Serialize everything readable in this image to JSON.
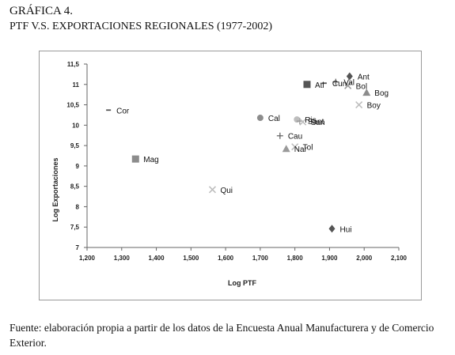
{
  "figure": {
    "number": "GRÁFICA 4.",
    "title": "PTF V.S. EXPORTACIONES REGIONALES (1977-2002)",
    "source": "Fuente: elaboración propia a partir de los datos de la Encuesta Anual Manufacturera y de Comercio Exterior."
  },
  "chart_data": {
    "type": "scatter",
    "xlabel": "Log PTF",
    "ylabel": "Log Exportaciones",
    "xlim": [
      1.2,
      2.1
    ],
    "ylim": [
      7,
      11.5
    ],
    "xticks": [
      1.2,
      1.3,
      1.4,
      1.5,
      1.6,
      1.7,
      1.8,
      1.9,
      2.0,
      2.1
    ],
    "xtick_labels": [
      "1,200",
      "1,300",
      "1,400",
      "1,500",
      "1,600",
      "1,700",
      "1,800",
      "1,900",
      "2,000",
      "2,100"
    ],
    "yticks": [
      7,
      7.5,
      8,
      8.5,
      9,
      9.5,
      10,
      10.5,
      11,
      11.5
    ],
    "ytick_labels": [
      "7",
      "7,5",
      "8",
      "8,5",
      "9",
      "9,5",
      "10",
      "10,5",
      "11",
      "11,5"
    ],
    "grid": false,
    "points": [
      {
        "label": "Cor",
        "x": 1.262,
        "y": 10.37,
        "marker": "dash",
        "color": "#555555"
      },
      {
        "label": "Mag",
        "x": 1.34,
        "y": 9.17,
        "marker": "square",
        "color": "#8c8c8c"
      },
      {
        "label": "Qui",
        "x": 1.562,
        "y": 8.42,
        "marker": "x",
        "color": "#bdbdbd"
      },
      {
        "label": "Cal",
        "x": 1.7,
        "y": 10.18,
        "marker": "circle",
        "color": "#8c8c8c"
      },
      {
        "label": "Cau",
        "x": 1.757,
        "y": 9.74,
        "marker": "plus",
        "color": "#666666"
      },
      {
        "label": "Nar",
        "x": 1.775,
        "y": 9.42,
        "marker": "triangle",
        "color": "#9a9a9a"
      },
      {
        "label": "Tol",
        "x": 1.8,
        "y": 9.47,
        "marker": "x",
        "color": "#bdbdbd"
      },
      {
        "label": "Ris",
        "x": 1.806,
        "y": 10.14,
        "marker": "circle",
        "color": "#bdbdbd"
      },
      {
        "label": "Sant",
        "x": 1.814,
        "y": 10.1,
        "marker": "plus",
        "color": "#9a9a9a"
      },
      {
        "label": "San",
        "x": 1.823,
        "y": 10.08,
        "marker": "x",
        "color": "#bdbdbd"
      },
      {
        "label": "Atl",
        "x": 1.835,
        "y": 11.0,
        "marker": "square",
        "color": "#555555"
      },
      {
        "label": "Cun",
        "x": 1.885,
        "y": 11.03,
        "marker": "dash",
        "color": "#555555"
      },
      {
        "label": "Val",
        "x": 1.918,
        "y": 11.06,
        "marker": "plus",
        "color": "#666666"
      },
      {
        "label": "Bol",
        "x": 1.953,
        "y": 10.97,
        "marker": "x",
        "color": "#999999"
      },
      {
        "label": "Ant",
        "x": 1.958,
        "y": 11.2,
        "marker": "diamond",
        "color": "#555555"
      },
      {
        "label": "Bog",
        "x": 2.007,
        "y": 10.8,
        "marker": "triangle",
        "color": "#8c8c8c"
      },
      {
        "label": "Boy",
        "x": 1.985,
        "y": 10.5,
        "marker": "x",
        "color": "#bdbdbd"
      },
      {
        "label": "Hui",
        "x": 1.907,
        "y": 7.46,
        "marker": "diamond",
        "color": "#555555"
      }
    ]
  }
}
